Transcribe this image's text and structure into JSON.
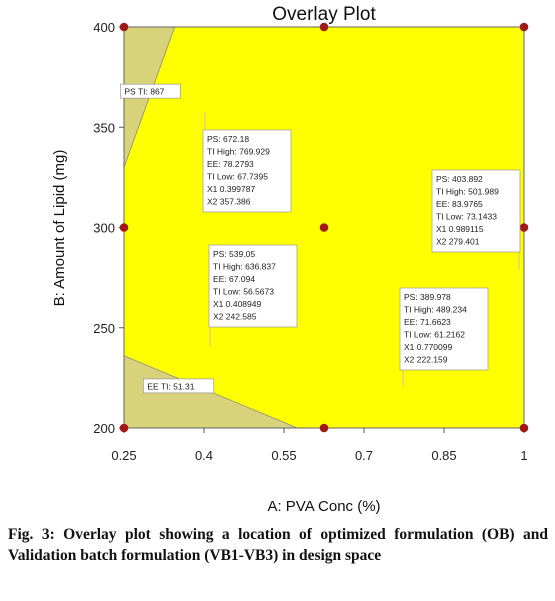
{
  "chart_data": {
    "type": "scatter",
    "title": "Overlay Plot",
    "xlabel": "A: PVA Conc (%)",
    "ylabel": "B: Amount of Lipid (mg)",
    "xlim": [
      0.25,
      1
    ],
    "ylim": [
      200,
      400
    ],
    "xticks": [
      "0.25",
      "0.4",
      "0.55",
      "0.7",
      "0.85",
      "1"
    ],
    "xtick_values": [
      0.25,
      0.4,
      0.55,
      0.7,
      0.85,
      1.0
    ],
    "yticks": [
      "200",
      "250",
      "300",
      "350",
      "400"
    ],
    "ytick_values": [
      200,
      250,
      300,
      350,
      400
    ],
    "grid": false,
    "region_color": "#ffff00",
    "excluded_color": "#d8d27a",
    "point_color": "#a01818",
    "design_points": [
      {
        "x": 0.25,
        "y": 400
      },
      {
        "x": 0.625,
        "y": 400
      },
      {
        "x": 1.0,
        "y": 400
      },
      {
        "x": 0.25,
        "y": 300
      },
      {
        "x": 0.625,
        "y": 300
      },
      {
        "x": 1.0,
        "y": 300
      },
      {
        "x": 0.25,
        "y": 200
      },
      {
        "x": 0.625,
        "y": 200
      },
      {
        "x": 1.0,
        "y": 200
      }
    ],
    "constraint_labels": [
      {
        "text": "PS TI: 867",
        "boundary": [
          [
            0.25,
            330
          ],
          [
            0.345,
            400
          ]
        ]
      },
      {
        "text": "EE TI: 51.31",
        "boundary": [
          [
            0.25,
            236
          ],
          [
            0.575,
            200
          ]
        ]
      }
    ],
    "flags": [
      {
        "x": 0.4,
        "y": 357.386,
        "lines": [
          "PS:   672.18",
          "TI High:   769.929",
          "EE:   78.2793",
          "TI Low:   67.7395",
          "X1  0.399787",
          "X2  357.386"
        ]
      },
      {
        "x": 0.409,
        "y": 242.585,
        "lines": [
          "PS:   539.05",
          "TI High:   636.837",
          "EE:   67.094",
          "TI Low:   56.5673",
          "X1  0.408949",
          "X2  242.585"
        ]
      },
      {
        "x": 0.989,
        "y": 279.401,
        "lines": [
          "PS:   403.892",
          "TI High:   501.989",
          "EE:   83.9765",
          "TI Low:   73.1433",
          "X1  0.989115",
          "X2  279.401"
        ]
      },
      {
        "x": 0.77,
        "y": 222.159,
        "lines": [
          "PS:   389.978",
          "TI High:   489.234",
          "EE:   71.6623",
          "TI Low:   61.2162",
          "X1  0.770099",
          "X2  222.159"
        ]
      }
    ]
  },
  "caption": "Fig. 3: Overlay plot showing a location of optimized formulation (OB) and Validation batch formulation (VB1-VB3) in design space"
}
